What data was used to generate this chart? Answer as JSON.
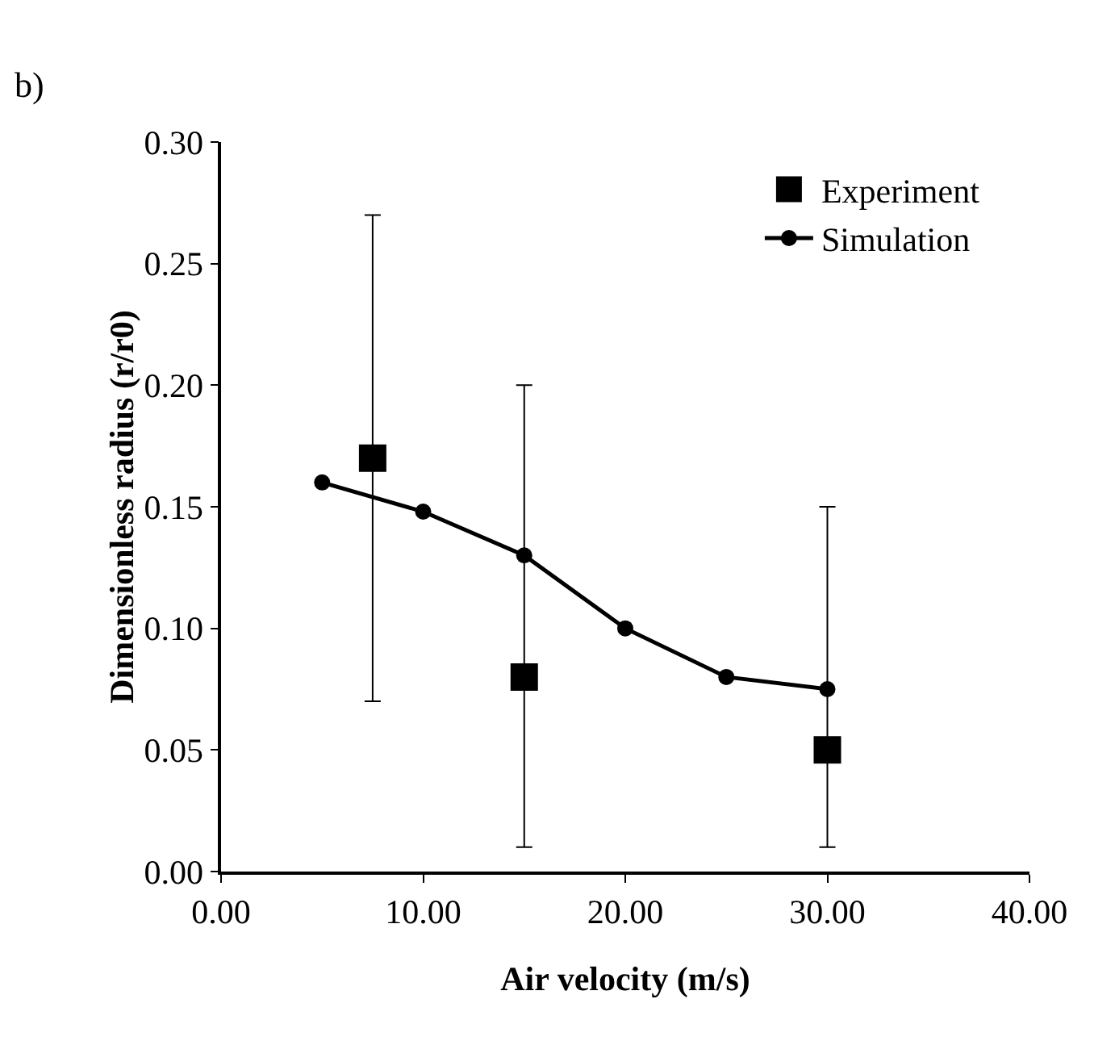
{
  "chart_data": {
    "type": "line",
    "annotations": [
      "b)"
    ],
    "xlabel": "Air velocity (m/s)",
    "ylabel": "Dimensionless radius (r/r0)",
    "xlim": [
      0,
      40
    ],
    "xticks": [
      {
        "value": 0,
        "label": "0.00"
      },
      {
        "value": 10,
        "label": "10.00"
      },
      {
        "value": 20,
        "label": "20.00"
      },
      {
        "value": 30,
        "label": "30.00"
      },
      {
        "value": 40,
        "label": "40.00"
      }
    ],
    "ylim": [
      0,
      0.3
    ],
    "yticks": [
      {
        "value": 0,
        "label": "0.00"
      },
      {
        "value": 0.05,
        "label": "0.05"
      },
      {
        "value": 0.1,
        "label": "0.10"
      },
      {
        "value": 0.15,
        "label": "0.15"
      },
      {
        "value": 0.2,
        "label": "0.20"
      },
      {
        "value": 0.25,
        "label": "0.25"
      },
      {
        "value": 0.3,
        "label": "0.30"
      }
    ],
    "grid": false,
    "legend": "top right",
    "series": [
      {
        "name": "Experiment",
        "type": "scatter",
        "marker": "square",
        "color": "#000000",
        "x": [
          7.5,
          15,
          30
        ],
        "values": [
          0.17,
          0.08,
          0.05
        ],
        "errors": [
          [
            0.07,
            0.27
          ],
          [
            0.01,
            0.2
          ],
          [
            0.01,
            0.15
          ]
        ]
      },
      {
        "name": "Simulation",
        "marker": "circle",
        "line_style": "solid",
        "color": "#000000",
        "x": [
          5,
          10,
          15,
          20,
          25,
          30
        ],
        "values": [
          0.16,
          0.148,
          0.13,
          0.1,
          0.08,
          0.075
        ]
      }
    ]
  }
}
